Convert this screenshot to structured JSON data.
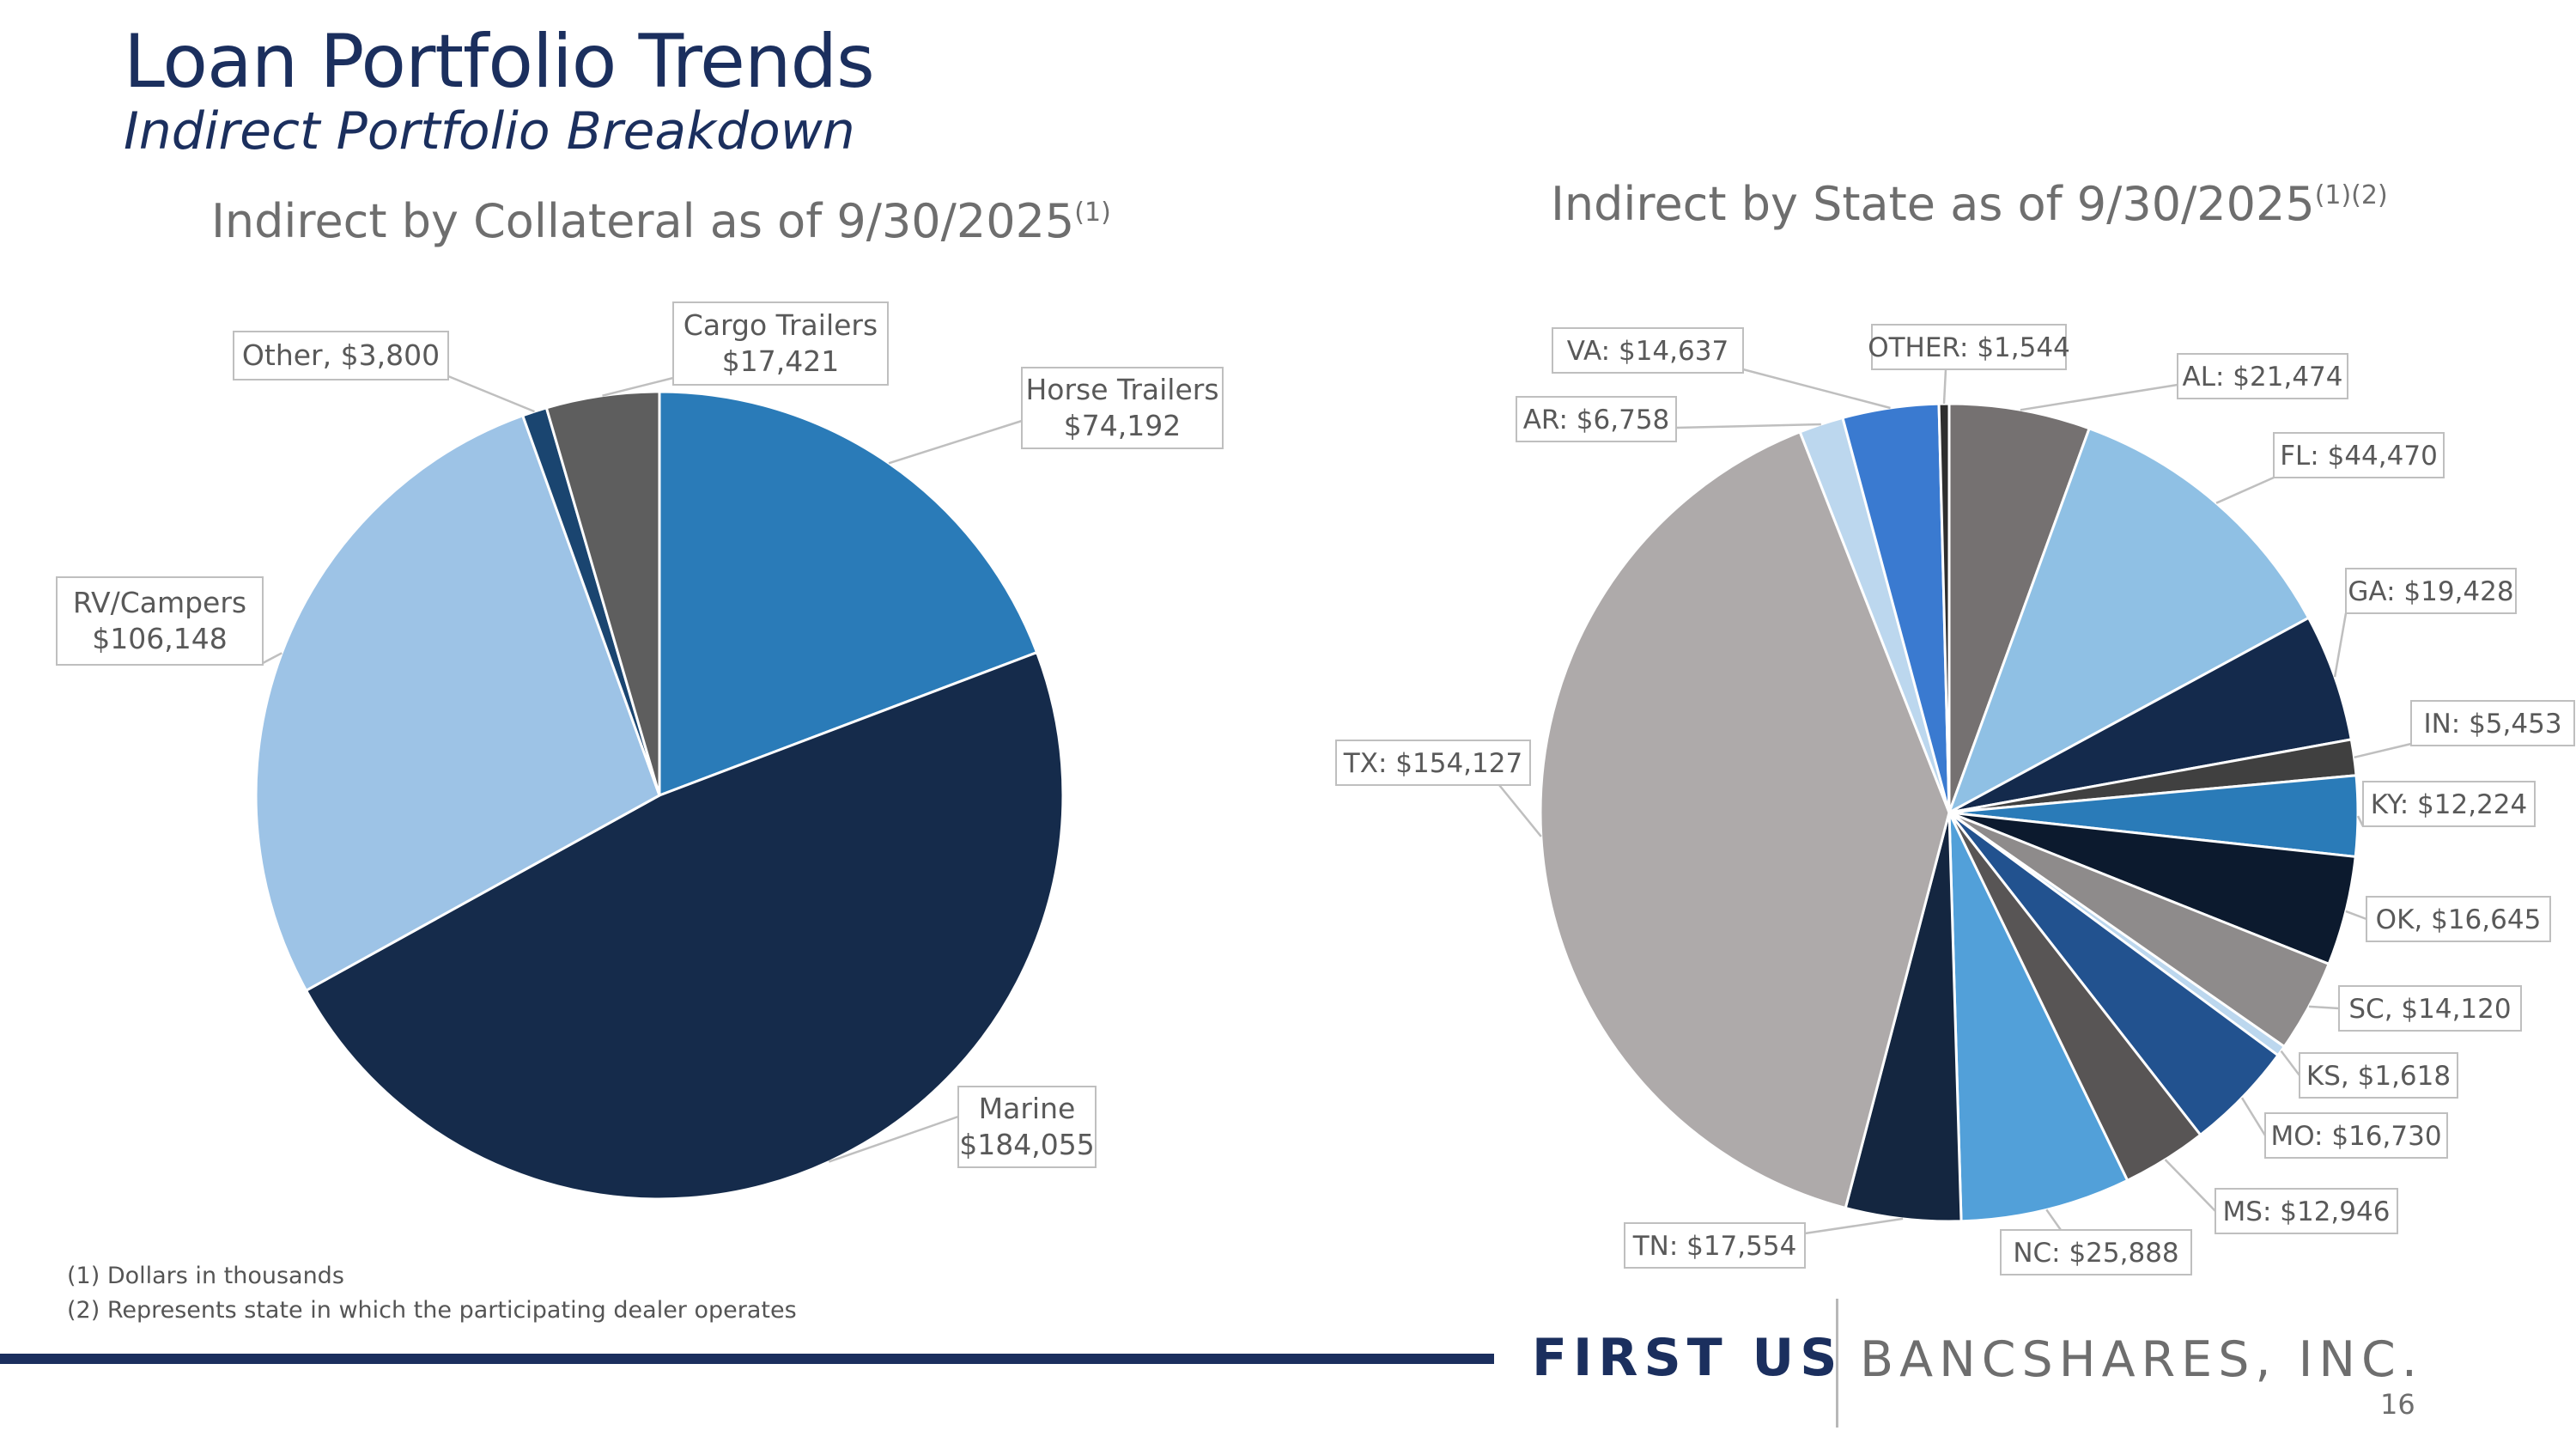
{
  "header": {
    "title": "Loan Portfolio Trends",
    "subtitle": "Indirect Portfolio Breakdown"
  },
  "chart_data": [
    {
      "type": "pie",
      "title": "Indirect by Collateral as of 9/30/2025",
      "title_sup": "(1)",
      "units": "Dollars in thousands",
      "slices": [
        {
          "name": "Horse Trailers",
          "value": 74192,
          "label1": "Horse Trailers",
          "label2": "$74,192",
          "color": "#2a7bb8"
        },
        {
          "name": "Marine",
          "value": 184055,
          "label1": "Marine",
          "label2": "$184,055",
          "color": "#152b4b"
        },
        {
          "name": "RV/Campers",
          "value": 106148,
          "label1": "RV/Campers",
          "label2": "$106,148",
          "color": "#9dc3e6"
        },
        {
          "name": "Other",
          "value": 3800,
          "label1": "Other, $3,800",
          "label2": "",
          "color": "#1a4570"
        },
        {
          "name": "Cargo Trailers",
          "value": 17421,
          "label1": "Cargo Trailers",
          "label2": "$17,421",
          "color": "#5e5e5e"
        }
      ]
    },
    {
      "type": "pie",
      "title": "Indirect by State as of 9/30/2025",
      "title_sup": "(1)(2)",
      "units": "Dollars in thousands",
      "slices": [
        {
          "name": "AL",
          "value": 21474,
          "label1": "AL: $21,474",
          "color": "#757171"
        },
        {
          "name": "FL",
          "value": 44470,
          "label1": "FL: $44,470",
          "color": "#8fc0e4"
        },
        {
          "name": "GA",
          "value": 19428,
          "label1": "GA: $19,428",
          "color": "#142a4c"
        },
        {
          "name": "IN",
          "value": 5453,
          "label1": "IN: $5,453",
          "color": "#404040"
        },
        {
          "name": "KY",
          "value": 12224,
          "label1": "KY: $12,224",
          "color": "#2a7bb8"
        },
        {
          "name": "OK",
          "value": 16645,
          "label1": "OK, $16,645",
          "color": "#0c1a2e"
        },
        {
          "name": "SC",
          "value": 14120,
          "label1": "SC, $14,120",
          "color": "#8e8b8b"
        },
        {
          "name": "KS",
          "value": 1618,
          "label1": "KS, $1,618",
          "color": "#bcd7ee"
        },
        {
          "name": "MO",
          "value": 16730,
          "label1": "MO: $16,730",
          "color": "#22528f"
        },
        {
          "name": "MS",
          "value": 12946,
          "label1": "MS: $12,946",
          "color": "#585555"
        },
        {
          "name": "NC",
          "value": 25888,
          "label1": "NC: $25,888",
          "color": "#52a0d9"
        },
        {
          "name": "TN",
          "value": 17554,
          "label1": "TN: $17,554",
          "color": "#142640"
        },
        {
          "name": "TX",
          "value": 154127,
          "label1": "TX: $154,127",
          "color": "#aeaaaa"
        },
        {
          "name": "AR",
          "value": 6758,
          "label1": "AR: $6,758",
          "color": "#bcd7ee"
        },
        {
          "name": "VA",
          "value": 14637,
          "label1": "VA: $14,637",
          "color": "#3a7ad0"
        },
        {
          "name": "OTHER",
          "value": 1544,
          "label1": "OTHER: $1,544",
          "color": "#2e2e2e"
        }
      ]
    }
  ],
  "footnotes": [
    "(1) Dollars in thousands",
    "(2) Represents state in which the participating dealer operates"
  ],
  "footer": {
    "logo_first": "FIRST US",
    "logo_bancshares": "BANCSHARES, INC.",
    "page_number": "16"
  }
}
